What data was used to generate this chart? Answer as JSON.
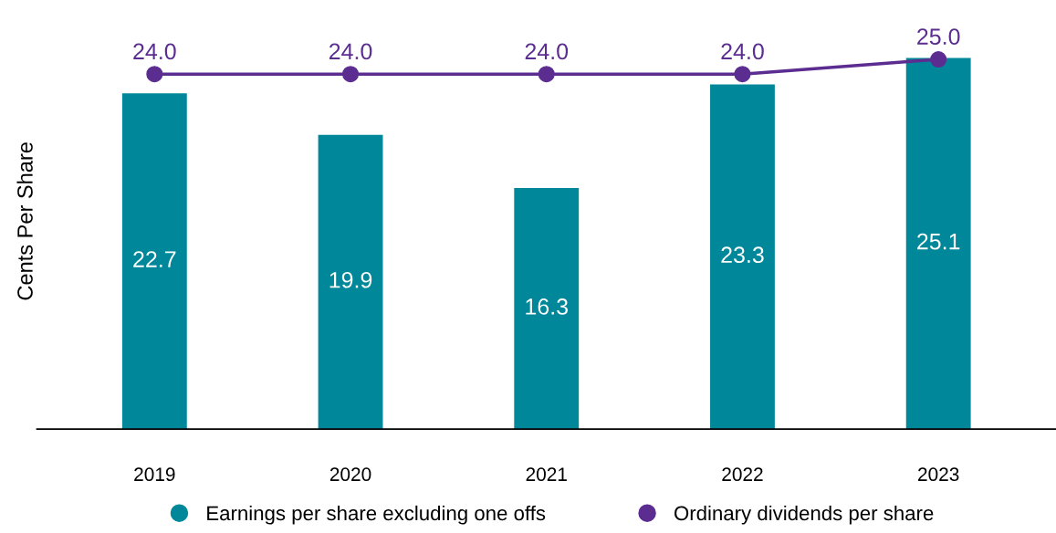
{
  "chart_data": {
    "type": "bar",
    "ylabel": "Cents Per Share",
    "categories": [
      "2019",
      "2020",
      "2021",
      "2022",
      "2023"
    ],
    "series": [
      {
        "name": "Earnings per share excluding one offs",
        "color": "#00889a",
        "values": [
          22.7,
          19.9,
          16.3,
          23.3,
          25.1
        ]
      },
      {
        "name": "Ordinary dividends per share",
        "type": "line",
        "color": "#5c2d91",
        "values": [
          24.0,
          24.0,
          24.0,
          24.0,
          25.0
        ],
        "value_labels": [
          "24.0",
          "24.0",
          "24.0",
          "24.0",
          "25.0"
        ]
      }
    ],
    "data_labels": true,
    "marker": "circle",
    "line_style": "solid",
    "legend": "bottom",
    "grid": false
  }
}
